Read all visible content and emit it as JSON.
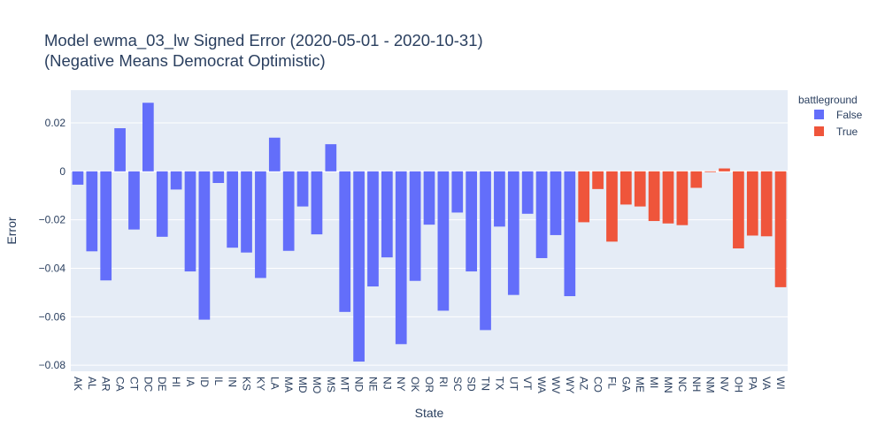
{
  "chart_data": {
    "type": "bar",
    "title": "Model ewma_03_lw Signed Error (2020-05-01 - 2020-10-31)",
    "subtitle": "(Negative Means Democrat Optimistic)",
    "xlabel": "State",
    "ylabel": "Error",
    "ylim": [
      -0.0825,
      0.0335
    ],
    "yticks": [
      0.02,
      0,
      -0.02,
      -0.04,
      -0.06,
      -0.08
    ],
    "ytick_labels": [
      "0.02",
      "0",
      "−0.02",
      "−0.04",
      "−0.06",
      "−0.08"
    ],
    "grid": true,
    "legend_title": "battleground",
    "legend_position": "top-right",
    "series": [
      {
        "name": "False",
        "color": "#636efa",
        "categories": [
          "AK",
          "AL",
          "AR",
          "CA",
          "CT",
          "DC",
          "DE",
          "HI",
          "IA",
          "ID",
          "IL",
          "IN",
          "KS",
          "KY",
          "LA",
          "MA",
          "MD",
          "MO",
          "MS",
          "MT",
          "ND",
          "NE",
          "NJ",
          "NY",
          "OK",
          "OR",
          "RI",
          "SC",
          "SD",
          "TN",
          "TX",
          "UT",
          "VT",
          "WA",
          "WV",
          "WY"
        ],
        "values": [
          -0.0055,
          -0.033,
          -0.045,
          0.0178,
          -0.024,
          0.0283,
          -0.027,
          -0.0075,
          -0.0413,
          -0.0612,
          -0.0048,
          -0.0315,
          -0.0335,
          -0.044,
          0.0139,
          -0.0328,
          -0.0145,
          -0.026,
          0.0112,
          -0.058,
          -0.0785,
          -0.0475,
          -0.0355,
          -0.0713,
          -0.0452,
          -0.022,
          -0.0575,
          -0.017,
          -0.0413,
          -0.0655,
          -0.0228,
          -0.051,
          -0.0175,
          -0.0358,
          -0.0263,
          -0.0515
        ]
      },
      {
        "name": "True",
        "color": "#ef553b",
        "categories": [
          "AZ",
          "CO",
          "FL",
          "GA",
          "ME",
          "MI",
          "MN",
          "NC",
          "NH",
          "NM",
          "NV",
          "OH",
          "PA",
          "VA",
          "WI"
        ],
        "values": [
          -0.021,
          -0.0073,
          -0.029,
          -0.0137,
          -0.0145,
          -0.0205,
          -0.0215,
          -0.0222,
          -0.0068,
          -0.0003,
          0.0012,
          -0.0318,
          -0.0265,
          -0.0268,
          -0.0478
        ]
      }
    ]
  }
}
